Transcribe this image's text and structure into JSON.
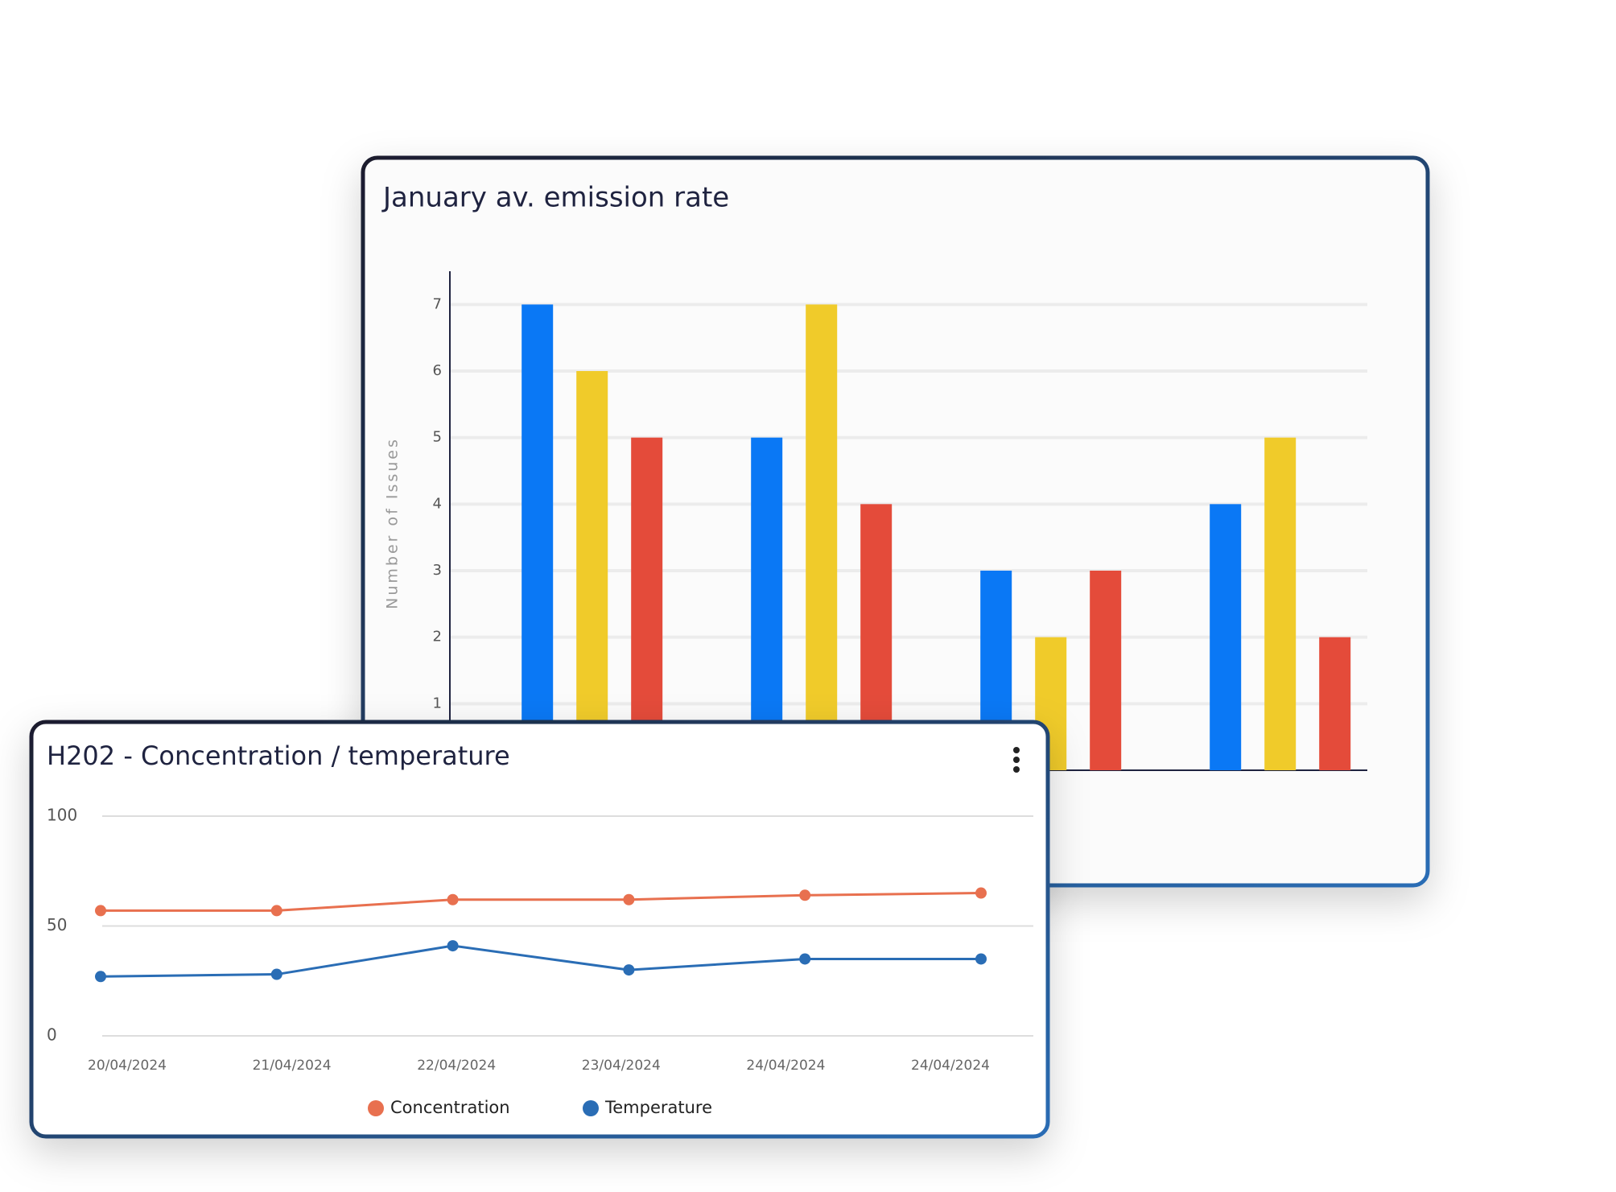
{
  "chart_data": [
    {
      "type": "bar",
      "title": "January av. emission rate",
      "y_label": "Number of Issues",
      "categories": [
        null,
        null,
        null,
        null
      ],
      "series": [
        {
          "color": "#0a78f5",
          "values": [
            7,
            5,
            3,
            4
          ]
        },
        {
          "color": "#f0cb2a",
          "values": [
            6,
            7,
            2,
            5
          ]
        },
        {
          "color": "#e44b3a",
          "values": [
            5,
            4,
            3,
            2
          ]
        }
      ],
      "ylim": [
        0,
        7.5
      ],
      "yticks": [
        1,
        2,
        3,
        4,
        5,
        6,
        7
      ],
      "grid": true
    },
    {
      "type": "line",
      "title": "H202 - Concentration / temperature",
      "categories": [
        "20/04/2024",
        "21/04/2024",
        "22/04/2024",
        "23/04/2024",
        "24/04/2024",
        "24/04/2024"
      ],
      "series": [
        {
          "name": "Concentration",
          "color": "#e8704f",
          "values": [
            57,
            57,
            62,
            62,
            64,
            65
          ]
        },
        {
          "name": "Temperature",
          "color": "#2a6db5",
          "values": [
            27,
            28,
            41,
            30,
            35,
            35
          ]
        }
      ],
      "ylim": [
        0,
        100
      ],
      "yticks": [
        0,
        50,
        100
      ],
      "grid": true,
      "legend": "bottom"
    }
  ]
}
